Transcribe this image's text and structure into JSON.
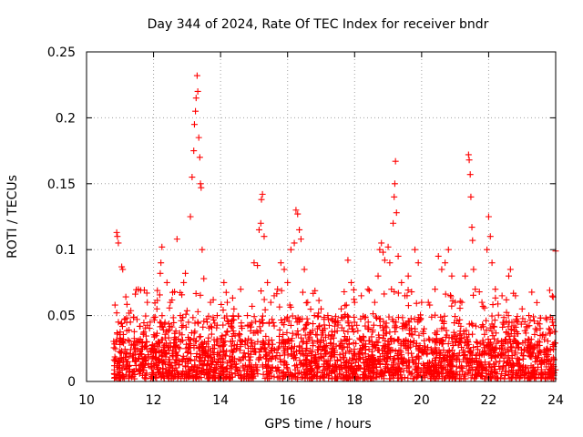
{
  "chart_data": {
    "type": "scatter",
    "title": "Day 344 of 2024, Rate Of TEC Index for receiver bndr",
    "xlabel": "GPS time / hours",
    "ylabel": "ROTI / TECUs",
    "xlim": [
      10,
      24
    ],
    "ylim": [
      0,
      0.25
    ],
    "x_ticks": [
      10,
      12,
      14,
      16,
      18,
      20,
      22,
      24
    ],
    "y_ticks": [
      0,
      0.05,
      0.1,
      0.15,
      0.2,
      0.25
    ],
    "x_tick_labels": [
      "10",
      "12",
      "14",
      "16",
      "18",
      "20",
      "22",
      "24"
    ],
    "y_tick_labels": [
      "0",
      "0.05",
      "0.1",
      "0.15",
      "0.2",
      "0.25"
    ],
    "grid": true,
    "marker": "+",
    "color": "#ff0000",
    "series": [
      {
        "name": "ROTI",
        "points": [
          [
            10.9,
            0.113
          ],
          [
            10.92,
            0.11
          ],
          [
            10.95,
            0.105
          ],
          [
            11.05,
            0.087
          ],
          [
            11.08,
            0.085
          ],
          [
            10.85,
            0.058
          ],
          [
            10.9,
            0.052
          ],
          [
            10.95,
            0.045
          ],
          [
            10.88,
            0.03
          ],
          [
            11.0,
            0.028
          ],
          [
            11.2,
            0.022
          ],
          [
            11.4,
            0.018
          ],
          [
            11.6,
            0.03
          ],
          [
            11.8,
            0.067
          ],
          [
            11.9,
            0.045
          ],
          [
            12.1,
            0.055
          ],
          [
            12.2,
            0.082
          ],
          [
            12.22,
            0.09
          ],
          [
            12.25,
            0.102
          ],
          [
            12.4,
            0.075
          ],
          [
            12.5,
            0.06
          ],
          [
            12.7,
            0.108
          ],
          [
            12.8,
            0.05
          ],
          [
            12.9,
            0.075
          ],
          [
            12.95,
            0.082
          ],
          [
            13.1,
            0.125
          ],
          [
            13.15,
            0.155
          ],
          [
            13.2,
            0.175
          ],
          [
            13.22,
            0.195
          ],
          [
            13.25,
            0.205
          ],
          [
            13.27,
            0.215
          ],
          [
            13.3,
            0.232
          ],
          [
            13.32,
            0.22
          ],
          [
            13.35,
            0.185
          ],
          [
            13.38,
            0.17
          ],
          [
            13.4,
            0.15
          ],
          [
            13.42,
            0.147
          ],
          [
            13.45,
            0.1
          ],
          [
            13.5,
            0.078
          ],
          [
            13.6,
            0.045
          ],
          [
            13.7,
            0.06
          ],
          [
            13.9,
            0.05
          ],
          [
            14.1,
            0.075
          ],
          [
            14.2,
            0.06
          ],
          [
            14.4,
            0.055
          ],
          [
            14.6,
            0.07
          ],
          [
            14.8,
            0.05
          ],
          [
            15.0,
            0.09
          ],
          [
            15.1,
            0.088
          ],
          [
            15.15,
            0.115
          ],
          [
            15.2,
            0.12
          ],
          [
            15.22,
            0.138
          ],
          [
            15.25,
            0.142
          ],
          [
            15.3,
            0.11
          ],
          [
            15.4,
            0.075
          ],
          [
            15.5,
            0.06
          ],
          [
            15.6,
            0.065
          ],
          [
            15.7,
            0.07
          ],
          [
            15.8,
            0.09
          ],
          [
            15.9,
            0.085
          ],
          [
            16.0,
            0.075
          ],
          [
            16.1,
            0.1
          ],
          [
            16.2,
            0.105
          ],
          [
            16.25,
            0.13
          ],
          [
            16.3,
            0.127
          ],
          [
            16.35,
            0.115
          ],
          [
            16.4,
            0.108
          ],
          [
            16.5,
            0.085
          ],
          [
            16.6,
            0.06
          ],
          [
            16.8,
            0.05
          ],
          [
            17.0,
            0.055
          ],
          [
            17.2,
            0.05
          ],
          [
            17.4,
            0.045
          ],
          [
            17.6,
            0.055
          ],
          [
            17.8,
            0.092
          ],
          [
            17.9,
            0.075
          ],
          [
            18.0,
            0.06
          ],
          [
            18.2,
            0.065
          ],
          [
            18.4,
            0.07
          ],
          [
            18.6,
            0.06
          ],
          [
            18.7,
            0.08
          ],
          [
            18.75,
            0.1
          ],
          [
            18.8,
            0.105
          ],
          [
            18.85,
            0.098
          ],
          [
            18.9,
            0.092
          ],
          [
            19.0,
            0.102
          ],
          [
            19.05,
            0.09
          ],
          [
            19.1,
            0.07
          ],
          [
            19.15,
            0.12
          ],
          [
            19.18,
            0.14
          ],
          [
            19.2,
            0.15
          ],
          [
            19.22,
            0.167
          ],
          [
            19.25,
            0.128
          ],
          [
            19.3,
            0.095
          ],
          [
            19.4,
            0.075
          ],
          [
            19.5,
            0.065
          ],
          [
            19.6,
            0.08
          ],
          [
            19.7,
            0.068
          ],
          [
            19.8,
            0.1
          ],
          [
            19.9,
            0.09
          ],
          [
            20.0,
            0.06
          ],
          [
            20.2,
            0.06
          ],
          [
            20.4,
            0.07
          ],
          [
            20.5,
            0.095
          ],
          [
            20.6,
            0.085
          ],
          [
            20.7,
            0.09
          ],
          [
            20.8,
            0.1
          ],
          [
            20.9,
            0.08
          ],
          [
            21.0,
            0.06
          ],
          [
            21.2,
            0.06
          ],
          [
            21.3,
            0.08
          ],
          [
            21.4,
            0.172
          ],
          [
            21.42,
            0.168
          ],
          [
            21.45,
            0.157
          ],
          [
            21.47,
            0.14
          ],
          [
            21.5,
            0.117
          ],
          [
            21.52,
            0.107
          ],
          [
            21.55,
            0.085
          ],
          [
            21.6,
            0.07
          ],
          [
            21.8,
            0.06
          ],
          [
            21.95,
            0.1
          ],
          [
            22.0,
            0.125
          ],
          [
            22.05,
            0.11
          ],
          [
            22.1,
            0.09
          ],
          [
            22.2,
            0.07
          ],
          [
            22.4,
            0.065
          ],
          [
            22.6,
            0.08
          ],
          [
            22.65,
            0.085
          ],
          [
            22.8,
            0.065
          ],
          [
            23.0,
            0.055
          ],
          [
            23.2,
            0.05
          ],
          [
            23.4,
            0.04
          ],
          [
            23.6,
            0.035
          ],
          [
            23.8,
            0.04
          ],
          [
            23.9,
            0.045
          ],
          [
            24.0,
            0.099
          ]
        ]
      }
    ],
    "background_noise": {
      "description": "dense cloud of additional points, approx 0 to 0.06 across 10.8-24 h",
      "x_range": [
        10.8,
        24.0
      ],
      "count": 2600,
      "seed": 344
    }
  }
}
